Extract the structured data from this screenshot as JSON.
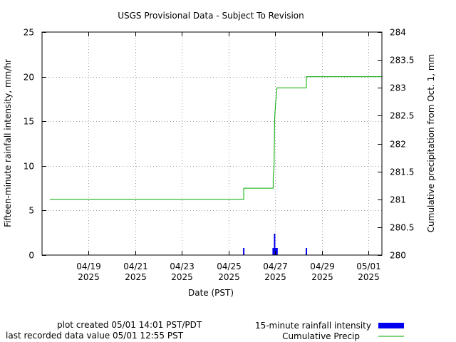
{
  "chart_data": {
    "type": "line",
    "title": "USGS Provisional Data - Subject To Revision",
    "xlabel": "Date (PST)",
    "ylabel": "Fifteen-minute rainfall intensity, mm/hr",
    "y2label": "Cumulative precipitation from Oct. 1, mm",
    "xlim": [
      "2025-04-17",
      "2025-05-01 14:00"
    ],
    "ylim": [
      0,
      25
    ],
    "y2lim": [
      280,
      284
    ],
    "grid": true,
    "x_tick_labels": [
      {
        "date": "2025-04-19",
        "line1": "04/19",
        "line2": "2025"
      },
      {
        "date": "2025-04-21",
        "line1": "04/21",
        "line2": "2025"
      },
      {
        "date": "2025-04-23",
        "line1": "04/23",
        "line2": "2025"
      },
      {
        "date": "2025-04-25",
        "line1": "04/25",
        "line2": "2025"
      },
      {
        "date": "2025-04-27",
        "line1": "04/27",
        "line2": "2025"
      },
      {
        "date": "2025-04-29",
        "line1": "04/29",
        "line2": "2025"
      },
      {
        "date": "2025-05-01",
        "line1": "05/01",
        "line2": "2025"
      }
    ],
    "y_ticks": [
      "0",
      "5",
      "10",
      "15",
      "20",
      "25"
    ],
    "y2_ticks": [
      "280",
      "280.5",
      "281",
      "281.5",
      "282",
      "282.5",
      "283",
      "283.5",
      "284"
    ],
    "series": [
      {
        "name": "15-minute rainfall intensity",
        "axis": "left",
        "style": "bars",
        "color": "#0000ee",
        "points": [
          {
            "x": "2025-04-25 15:45",
            "y": 0.8
          },
          {
            "x": "2025-04-26 22:00",
            "y": 0.8
          },
          {
            "x": "2025-04-26 23:30",
            "y": 2.4
          },
          {
            "x": "2025-04-27 00:00",
            "y": 0.8
          },
          {
            "x": "2025-04-27 01:00",
            "y": 0.8
          },
          {
            "x": "2025-04-27 02:00",
            "y": 0.8
          },
          {
            "x": "2025-04-28 08:15",
            "y": 0.8
          }
        ]
      },
      {
        "name": "Cumulative Precip",
        "axis": "right",
        "style": "step",
        "color": "#00aa00",
        "points": [
          {
            "x": "2025-04-17 08:00",
            "y": 281.0
          },
          {
            "x": "2025-04-25 15:45",
            "y": 281.0
          },
          {
            "x": "2025-04-25 15:45",
            "y": 281.2
          },
          {
            "x": "2025-04-26 22:00",
            "y": 281.2
          },
          {
            "x": "2025-04-26 22:00",
            "y": 281.4
          },
          {
            "x": "2025-04-26 23:00",
            "y": 281.6
          },
          {
            "x": "2025-04-26 23:30",
            "y": 282.4
          },
          {
            "x": "2025-04-27 00:00",
            "y": 282.6
          },
          {
            "x": "2025-04-27 01:00",
            "y": 282.8
          },
          {
            "x": "2025-04-27 02:00",
            "y": 283.0
          },
          {
            "x": "2025-04-28 08:15",
            "y": 283.0
          },
          {
            "x": "2025-04-28 08:15",
            "y": 283.2
          },
          {
            "x": "2025-05-01 14:00",
            "y": 283.2
          }
        ]
      }
    ]
  },
  "footer": {
    "created": "plot created 05/01 14:01 PST/PDT",
    "last_value": "last recorded data value 05/01 12:55 PST"
  },
  "legend": {
    "placement": "bottom-right",
    "items": [
      {
        "label": "15-minute rainfall intensity",
        "color": "#0000ee",
        "kind": "box"
      },
      {
        "label": "Cumulative Precip",
        "color": "#00aa00",
        "kind": "line"
      }
    ]
  }
}
